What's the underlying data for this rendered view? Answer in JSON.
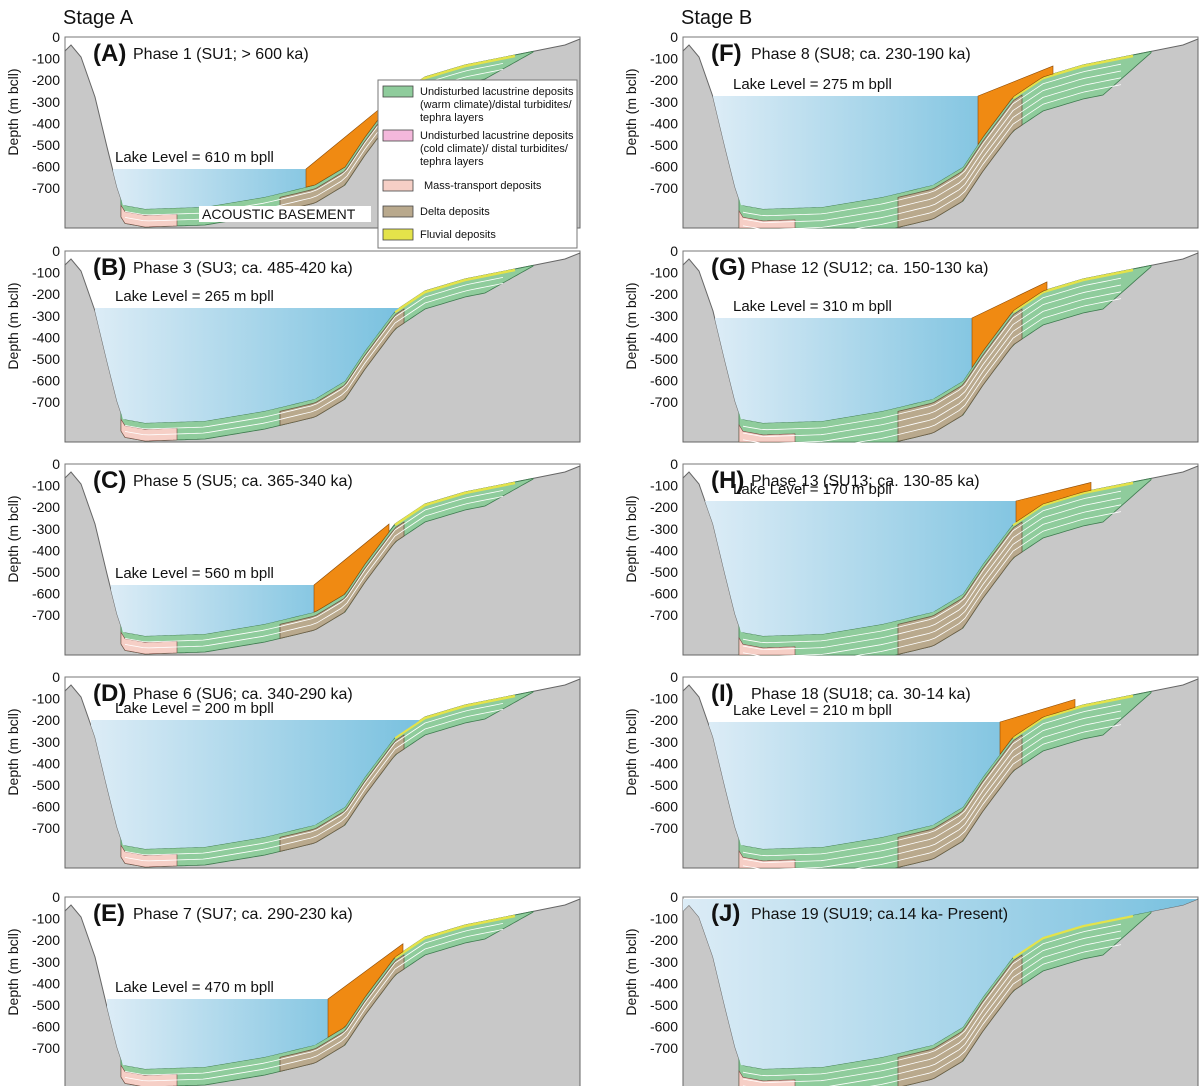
{
  "stages": [
    "Stage A",
    "Stage B"
  ],
  "axis": {
    "label": "Depth (m bcll)",
    "ticks": [
      0,
      -100,
      -200,
      -300,
      -400,
      -500,
      -600,
      -700
    ]
  },
  "panels": [
    {
      "letter": "(A)",
      "title": "Phase 1 (SU1; > 600 ka)",
      "lake_level": "Lake Level = 610 m bpll"
    },
    {
      "letter": "(B)",
      "title": "Phase 3 (SU3; ca. 485-420 ka)",
      "lake_level": "Lake Level = 265 m bpll"
    },
    {
      "letter": "(C)",
      "title": "Phase 5 (SU5; ca. 365-340 ka)",
      "lake_level": "Lake Level = 560 m bpll"
    },
    {
      "letter": "(D)",
      "title": "Phase 6 (SU6; ca. 340-290 ka)",
      "lake_level": "Lake Level = 200 m bpll"
    },
    {
      "letter": "(E)",
      "title": "Phase 7 (SU7; ca. 290-230 ka)",
      "lake_level": "Lake Level = 470 m bpll"
    },
    {
      "letter": "(F)",
      "title": "Phase 8 (SU8; ca. 230-190 ka)",
      "lake_level": "Lake Level = 275 m bpll"
    },
    {
      "letter": "(G)",
      "title": "Phase 12 (SU12; ca. 150-130 ka)",
      "lake_level": "Lake Level = 310 m bpll"
    },
    {
      "letter": "(H)",
      "title": "Phase 13 (SU13; ca. 130-85 ka)",
      "lake_level": "Lake Level = 170 m bpll"
    },
    {
      "letter": "(I)",
      "title": "Phase 18 (SU18; ca. 30-14 ka)",
      "lake_level": "Lake Level = 210 m bpll"
    },
    {
      "letter": "(J)",
      "title": "Phase 19 (SU19; ca.14 ka- Present)"
    }
  ],
  "legend": [
    {
      "lines": [
        "Undisturbed lacustrine deposits",
        "(warm climate)/distal turbidites/",
        "tephra layers"
      ]
    },
    {
      "lines": [
        "Undisturbed lacustrine deposits",
        "(cold climate)/ distal turbidites/",
        "tephra layers"
      ]
    },
    {
      "lines": [
        "Mass-transport deposits"
      ]
    },
    {
      "lines": [
        "Delta deposits"
      ]
    },
    {
      "lines": [
        "Fluvial deposits"
      ]
    }
  ],
  "basement_label": "ACOUSTIC BASEMENT"
}
